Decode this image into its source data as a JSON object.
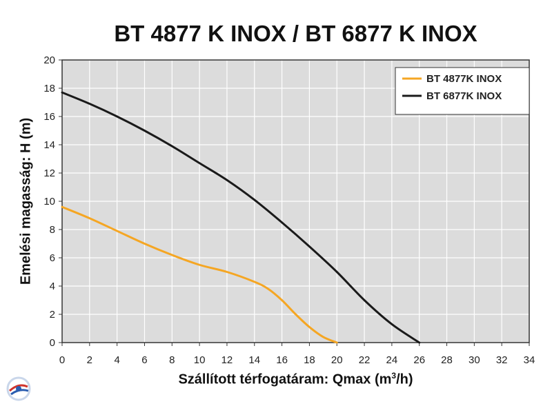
{
  "chart_data": {
    "type": "line",
    "title": "BT 4877 K INOX / BT 6877 K INOX",
    "ylabel": "Emelési magasság: H (m)",
    "xlabel_main": "Szállított térfogatáram: Qmax (m",
    "xlabel_sup": "3",
    "xlabel_end": "/h)",
    "xlim": [
      0,
      34
    ],
    "ylim": [
      0,
      20
    ],
    "xticks": [
      0,
      2,
      4,
      6,
      8,
      10,
      12,
      14,
      16,
      18,
      20,
      22,
      24,
      26,
      28,
      30,
      32,
      34
    ],
    "yticks": [
      0,
      2,
      4,
      6,
      8,
      10,
      12,
      14,
      16,
      18,
      20
    ],
    "grid": true,
    "legend_position": "top-right",
    "series": [
      {
        "name": "BT 4877K INOX",
        "color": "#f5a623",
        "x": [
          0,
          2,
          4,
          6,
          8,
          10,
          12,
          14,
          15,
          16,
          17,
          18,
          19,
          20
        ],
        "y": [
          9.6,
          8.8,
          7.9,
          7.0,
          6.2,
          5.5,
          5.0,
          4.3,
          3.8,
          3.0,
          2.0,
          1.1,
          0.4,
          0.0
        ]
      },
      {
        "name": "BT 6877K INOX",
        "color": "#1a1a1a",
        "x": [
          0,
          2,
          4,
          6,
          8,
          10,
          12,
          14,
          16,
          18,
          20,
          22,
          24,
          26
        ],
        "y": [
          17.7,
          16.9,
          16.0,
          15.0,
          13.9,
          12.7,
          11.5,
          10.1,
          8.5,
          6.8,
          5.0,
          3.0,
          1.3,
          0.0
        ]
      }
    ]
  },
  "logo": {
    "name": "brand-logo-icon"
  }
}
